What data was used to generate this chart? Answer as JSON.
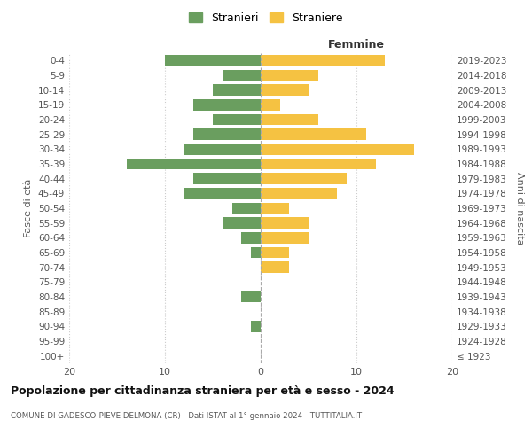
{
  "age_groups": [
    "100+",
    "95-99",
    "90-94",
    "85-89",
    "80-84",
    "75-79",
    "70-74",
    "65-69",
    "60-64",
    "55-59",
    "50-54",
    "45-49",
    "40-44",
    "35-39",
    "30-34",
    "25-29",
    "20-24",
    "15-19",
    "10-14",
    "5-9",
    "0-4"
  ],
  "birth_years": [
    "≤ 1923",
    "1924-1928",
    "1929-1933",
    "1934-1938",
    "1939-1943",
    "1944-1948",
    "1949-1953",
    "1954-1958",
    "1959-1963",
    "1964-1968",
    "1969-1973",
    "1974-1978",
    "1979-1983",
    "1984-1988",
    "1989-1993",
    "1994-1998",
    "1999-2003",
    "2004-2008",
    "2009-2013",
    "2014-2018",
    "2019-2023"
  ],
  "males": [
    0,
    0,
    1,
    0,
    2,
    0,
    0,
    1,
    2,
    4,
    3,
    8,
    7,
    14,
    8,
    7,
    5,
    7,
    5,
    4,
    10
  ],
  "females": [
    0,
    0,
    0,
    0,
    0,
    0,
    3,
    3,
    5,
    5,
    3,
    8,
    9,
    12,
    16,
    11,
    6,
    2,
    5,
    6,
    13
  ],
  "male_color": "#6a9e5f",
  "female_color": "#f5c242",
  "xlim": 20,
  "title": "Popolazione per cittadinanza straniera per età e sesso - 2024",
  "subtitle": "COMUNE DI GADESCO-PIEVE DELMONA (CR) - Dati ISTAT al 1° gennaio 2024 - TUTTITALIA.IT",
  "xlabel_right": "Femmine",
  "ylabel_left": "Fasce di età",
  "ylabel_right": "Anni di nascita",
  "legend_male": "Stranieri",
  "legend_female": "Straniere",
  "grid_color": "#cccccc",
  "background_color": "#ffffff"
}
